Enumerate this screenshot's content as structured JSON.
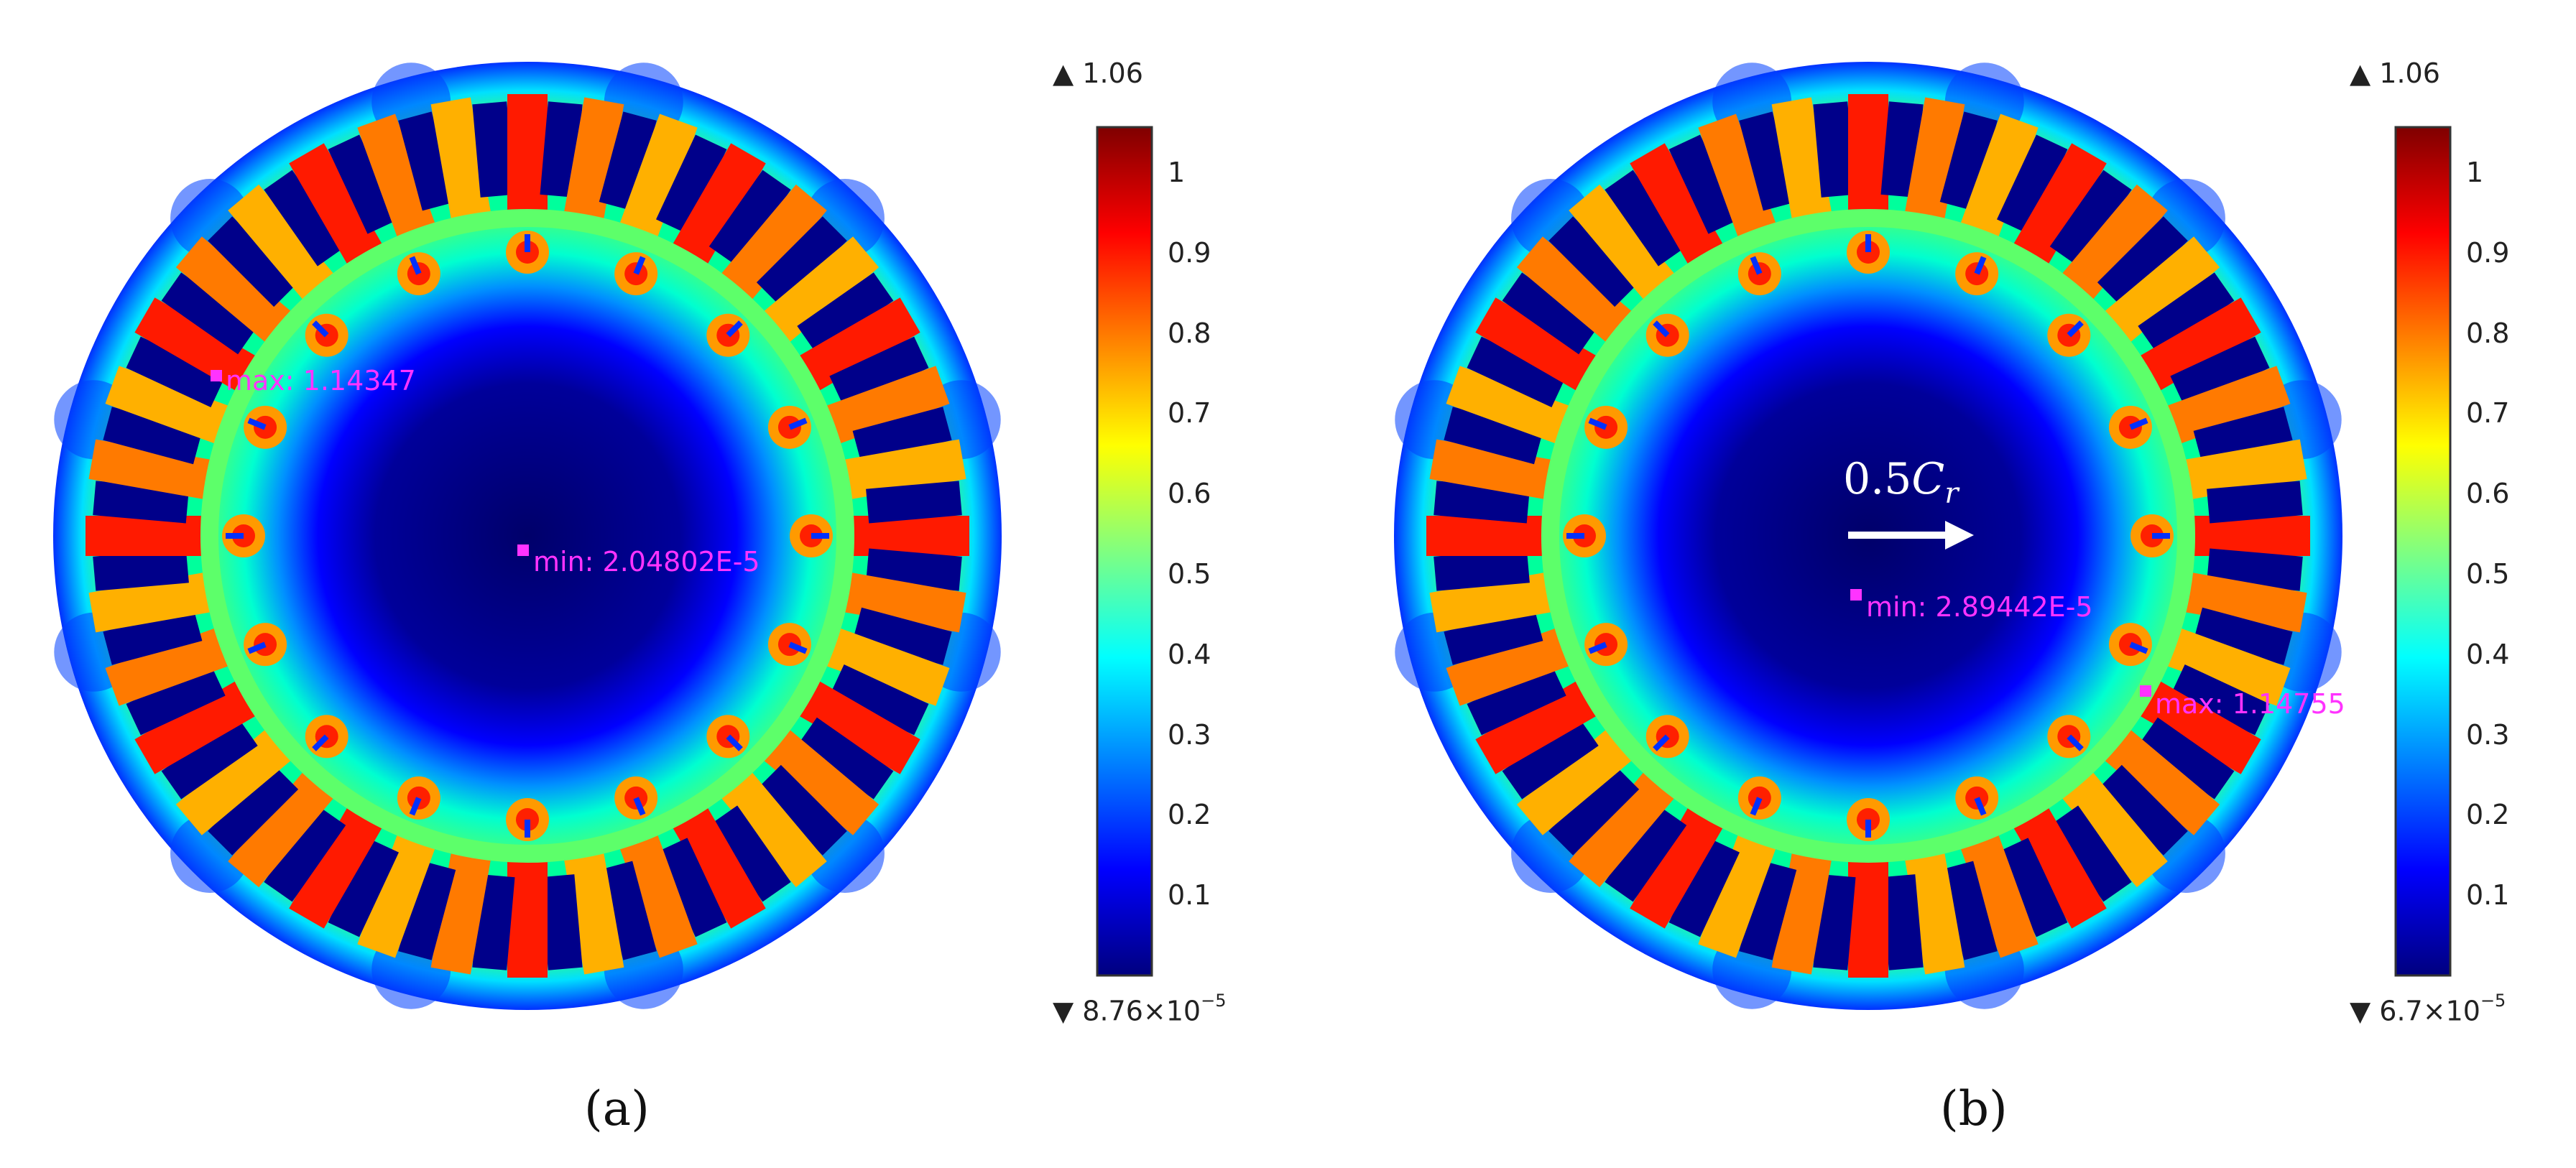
{
  "panels": [
    {
      "id": "a",
      "max_label": "max: 1.14347",
      "min_label": "min: 2.04802E-5",
      "colorbar": {
        "top_label": "▲ 1.06",
        "bottom_label_mantissa": "▼ 8.76×10",
        "bottom_label_exp": "−5",
        "ticks": [
          "1",
          "0.9",
          "0.8",
          "0.7",
          "0.6",
          "0.5",
          "0.4",
          "0.3",
          "0.2",
          "0.1"
        ]
      },
      "subfigure_label": "(a)"
    },
    {
      "id": "b",
      "max_label": "max: 1.14755",
      "min_label": "min: 2.89442E-5",
      "arrow_label_prefix": "0.5",
      "arrow_label_var": "C",
      "arrow_label_sub": "r",
      "colorbar": {
        "top_label": "▲ 1.06",
        "bottom_label_mantissa": "▼ 6.7×10",
        "bottom_label_exp": "−5",
        "ticks": [
          "1",
          "0.9",
          "0.8",
          "0.7",
          "0.6",
          "0.5",
          "0.4",
          "0.3",
          "0.2",
          "0.1"
        ]
      },
      "subfigure_label": "(b)"
    }
  ],
  "colormap": [
    "#00007f",
    "#0000ff",
    "#0080ff",
    "#00ffff",
    "#80ff80",
    "#ffff00",
    "#ff8000",
    "#ff0000",
    "#7f0000"
  ]
}
